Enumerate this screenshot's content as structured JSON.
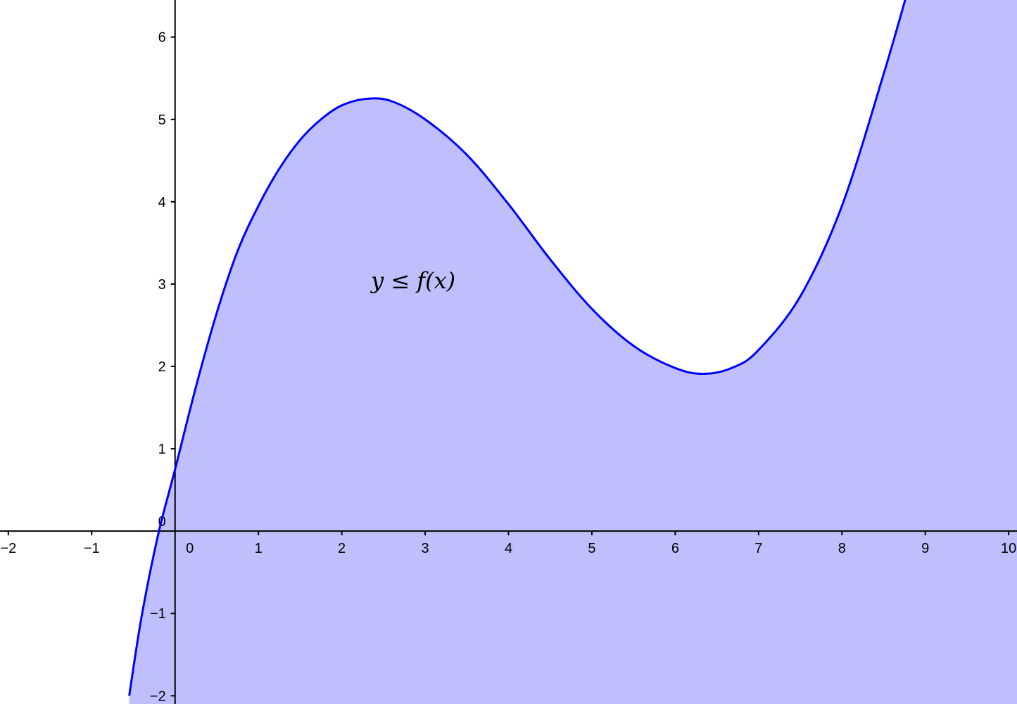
{
  "chart_data": {
    "type": "area",
    "title": "",
    "xlabel": "",
    "ylabel": "",
    "xlim": [
      -2.1,
      10.1
    ],
    "ylim": [
      -2.1,
      6.45
    ],
    "grid": false,
    "annotation": "y ≤ f(x)",
    "x_ticks": [
      {
        "value": -2,
        "label": "−2"
      },
      {
        "value": -1,
        "label": "−1"
      },
      {
        "value": 0,
        "label": "0"
      },
      {
        "value": 1,
        "label": "1"
      },
      {
        "value": 2,
        "label": "2"
      },
      {
        "value": 3,
        "label": "3"
      },
      {
        "value": 4,
        "label": "4"
      },
      {
        "value": 5,
        "label": "5"
      },
      {
        "value": 6,
        "label": "6"
      },
      {
        "value": 7,
        "label": "7"
      },
      {
        "value": 8,
        "label": "8"
      },
      {
        "value": 9,
        "label": "9"
      },
      {
        "value": 10,
        "label": "10"
      }
    ],
    "y_ticks": [
      {
        "value": -2,
        "label": "−2"
      },
      {
        "value": -1,
        "label": "−1"
      },
      {
        "value": 0,
        "label": "0"
      },
      {
        "value": 1,
        "label": "1"
      },
      {
        "value": 2,
        "label": "2"
      },
      {
        "value": 3,
        "label": "3"
      },
      {
        "value": 4,
        "label": "4"
      },
      {
        "value": 5,
        "label": "5"
      },
      {
        "value": 6,
        "label": "6"
      }
    ],
    "series": [
      {
        "values": [
          {
            "x": -0.55,
            "y": -2.0
          },
          {
            "x": -0.4,
            "y": -1.03
          },
          {
            "x": -0.2,
            "y": -0.03
          },
          {
            "x": 0,
            "y": 0.75
          },
          {
            "x": 0.25,
            "y": 1.75
          },
          {
            "x": 0.5,
            "y": 2.65
          },
          {
            "x": 0.75,
            "y": 3.4
          },
          {
            "x": 1.0,
            "y": 3.95
          },
          {
            "x": 1.25,
            "y": 4.4
          },
          {
            "x": 1.5,
            "y": 4.75
          },
          {
            "x": 1.75,
            "y": 5.0
          },
          {
            "x": 2.0,
            "y": 5.17
          },
          {
            "x": 2.3,
            "y": 5.25
          },
          {
            "x": 2.6,
            "y": 5.22
          },
          {
            "x": 3.0,
            "y": 5.0
          },
          {
            "x": 3.5,
            "y": 4.57
          },
          {
            "x": 4.0,
            "y": 3.97
          },
          {
            "x": 4.5,
            "y": 3.3
          },
          {
            "x": 5.0,
            "y": 2.7
          },
          {
            "x": 5.5,
            "y": 2.25
          },
          {
            "x": 6.0,
            "y": 1.98
          },
          {
            "x": 6.35,
            "y": 1.91
          },
          {
            "x": 6.7,
            "y": 1.99
          },
          {
            "x": 7.0,
            "y": 2.2
          },
          {
            "x": 7.5,
            "y": 2.85
          },
          {
            "x": 8.0,
            "y": 3.95
          },
          {
            "x": 8.5,
            "y": 5.55
          },
          {
            "x": 8.8,
            "y": 6.6
          }
        ]
      }
    ],
    "colors": {
      "curve": "#0000ff",
      "fill": "#bfbffd",
      "axis": "#000000"
    }
  }
}
